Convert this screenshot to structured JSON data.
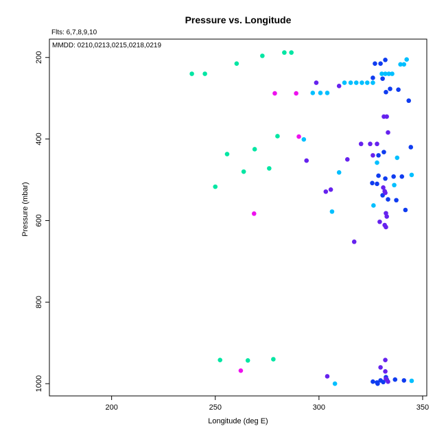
{
  "chart_data": {
    "type": "scatter",
    "title": "Pressure vs. Longitude",
    "annotations": [
      "Flts: 6,7,8,9,10",
      "MMDD: 0210,0213,0215,0218,0219"
    ],
    "xlabel": "Longitude (deg E)",
    "ylabel": "Pressure (mbar)",
    "xlim": [
      170,
      352
    ],
    "ylim": [
      1030,
      155
    ],
    "y_inverted": true,
    "grid": false,
    "x_ticks": [
      200,
      250,
      300,
      350
    ],
    "y_ticks": [
      200,
      400,
      600,
      800,
      1000
    ],
    "series": [
      {
        "color": "#00e6a3",
        "points": [
          [
            238.7,
            240
          ],
          [
            245,
            240
          ],
          [
            260.3,
            215
          ],
          [
            272.7,
            196
          ],
          [
            283.3,
            188
          ],
          [
            286.7,
            188
          ],
          [
            255.7,
            437
          ],
          [
            263.7,
            480
          ],
          [
            269,
            425
          ],
          [
            276,
            472
          ],
          [
            280,
            393
          ],
          [
            250,
            517
          ],
          [
            252.3,
            942
          ],
          [
            265.7,
            943
          ],
          [
            278,
            940
          ]
        ]
      },
      {
        "color": "#00bfff",
        "points": [
          [
            297,
            287
          ],
          [
            300.7,
            287
          ],
          [
            304,
            287
          ],
          [
            312.3,
            262
          ],
          [
            315.3,
            262
          ],
          [
            318,
            262
          ],
          [
            320.7,
            262
          ],
          [
            323.3,
            262
          ],
          [
            326,
            262
          ],
          [
            330.3,
            240
          ],
          [
            332,
            240
          ],
          [
            333.7,
            240
          ],
          [
            335.3,
            240
          ],
          [
            339.3,
            217
          ],
          [
            341,
            217
          ],
          [
            342.3,
            205
          ],
          [
            292.7,
            401
          ],
          [
            309.7,
            482
          ],
          [
            306.3,
            578
          ],
          [
            328,
            458
          ],
          [
            337.7,
            446
          ],
          [
            336.3,
            513
          ],
          [
            344.7,
            488
          ],
          [
            326.3,
            563
          ],
          [
            307.7,
            1000
          ],
          [
            344.7,
            993
          ]
        ]
      },
      {
        "color": "#0f3cf0",
        "points": [
          [
            327,
            215
          ],
          [
            329.7,
            215
          ],
          [
            332,
            206
          ],
          [
            326,
            250
          ],
          [
            330.7,
            252
          ],
          [
            332.3,
            285
          ],
          [
            334.3,
            277
          ],
          [
            338.3,
            279
          ],
          [
            343.3,
            306
          ],
          [
            344.3,
            420
          ],
          [
            331.3,
            432
          ],
          [
            328.7,
            440
          ],
          [
            325.7,
            508
          ],
          [
            328.7,
            490
          ],
          [
            332,
            497
          ],
          [
            336,
            492
          ],
          [
            340,
            492
          ],
          [
            330.7,
            538
          ],
          [
            333.3,
            548
          ],
          [
            337.3,
            550
          ],
          [
            341.7,
            574
          ],
          [
            328,
            510
          ],
          [
            326,
            995
          ],
          [
            328,
            997
          ],
          [
            329.7,
            992
          ],
          [
            332.7,
            990
          ],
          [
            336.7,
            990
          ],
          [
            341,
            992
          ],
          [
            332.3,
            984
          ],
          [
            328.3,
            1000
          ],
          [
            331,
            996
          ]
        ]
      },
      {
        "color": "#6622ee",
        "points": [
          [
            298.7,
            262
          ],
          [
            309.7,
            270
          ],
          [
            331.3,
            345
          ],
          [
            332.7,
            345
          ],
          [
            333.3,
            384
          ],
          [
            320.3,
            412
          ],
          [
            324.7,
            412
          ],
          [
            328,
            412
          ],
          [
            326,
            440
          ],
          [
            313.7,
            450
          ],
          [
            294,
            453
          ],
          [
            303.3,
            529
          ],
          [
            305.7,
            524
          ],
          [
            331,
            519
          ],
          [
            331.7,
            528
          ],
          [
            332,
            532
          ],
          [
            332.3,
            582
          ],
          [
            332.7,
            590
          ],
          [
            329.3,
            603
          ],
          [
            331.7,
            611
          ],
          [
            332.3,
            616
          ],
          [
            317,
            652
          ],
          [
            332,
            942
          ],
          [
            329.7,
            960
          ],
          [
            332,
            970
          ],
          [
            332.3,
            988
          ],
          [
            304,
            982
          ],
          [
            333.3,
            995
          ]
        ]
      },
      {
        "color": "#ee11ee",
        "points": [
          [
            278.7,
            288
          ],
          [
            289,
            288
          ],
          [
            290.3,
            394
          ],
          [
            268.7,
            583
          ],
          [
            262.3,
            968
          ]
        ]
      }
    ]
  }
}
